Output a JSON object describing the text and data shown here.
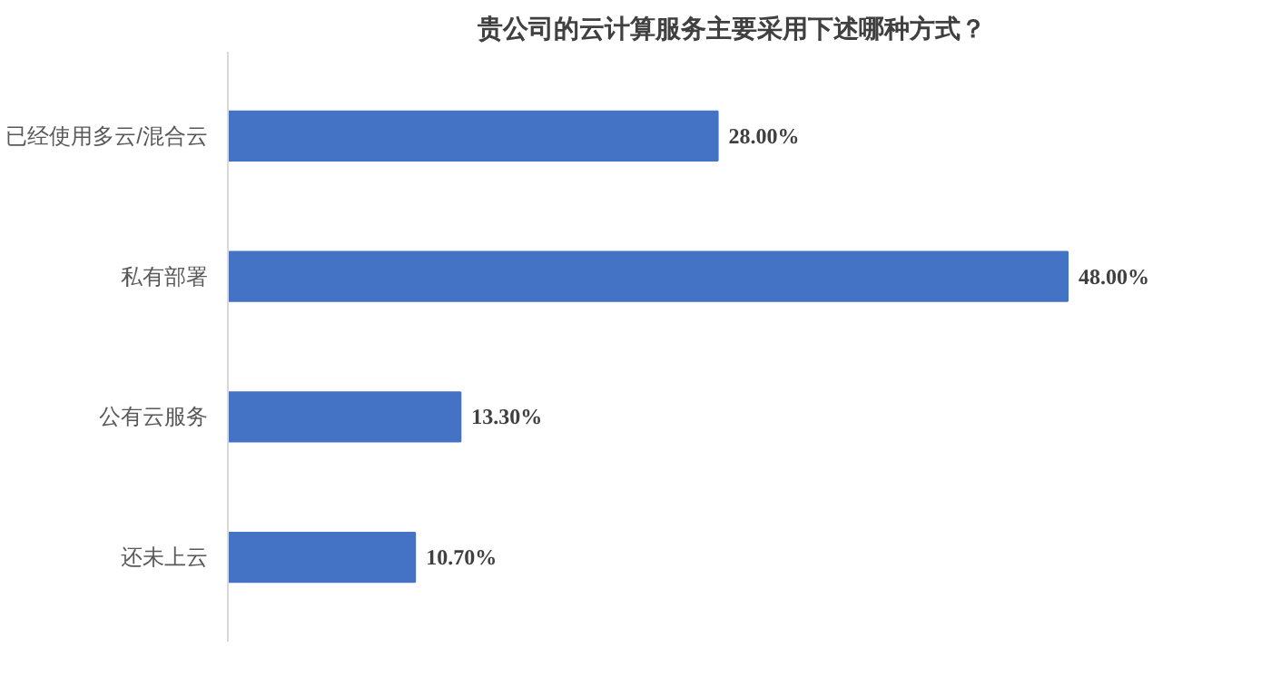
{
  "chart_data": {
    "type": "bar",
    "orientation": "horizontal",
    "title": "贵公司的云计算服务主要采用下述哪种方式？",
    "categories": [
      "已经使用多云/混合云",
      "私有部署",
      "公有云服务",
      "还未上云"
    ],
    "values": [
      28,
      48,
      13.3,
      10.7
    ],
    "value_labels": [
      "28.00%",
      "48.00%",
      "13.30%",
      "10.70%"
    ],
    "color": "#4472c4",
    "grid": false
  }
}
